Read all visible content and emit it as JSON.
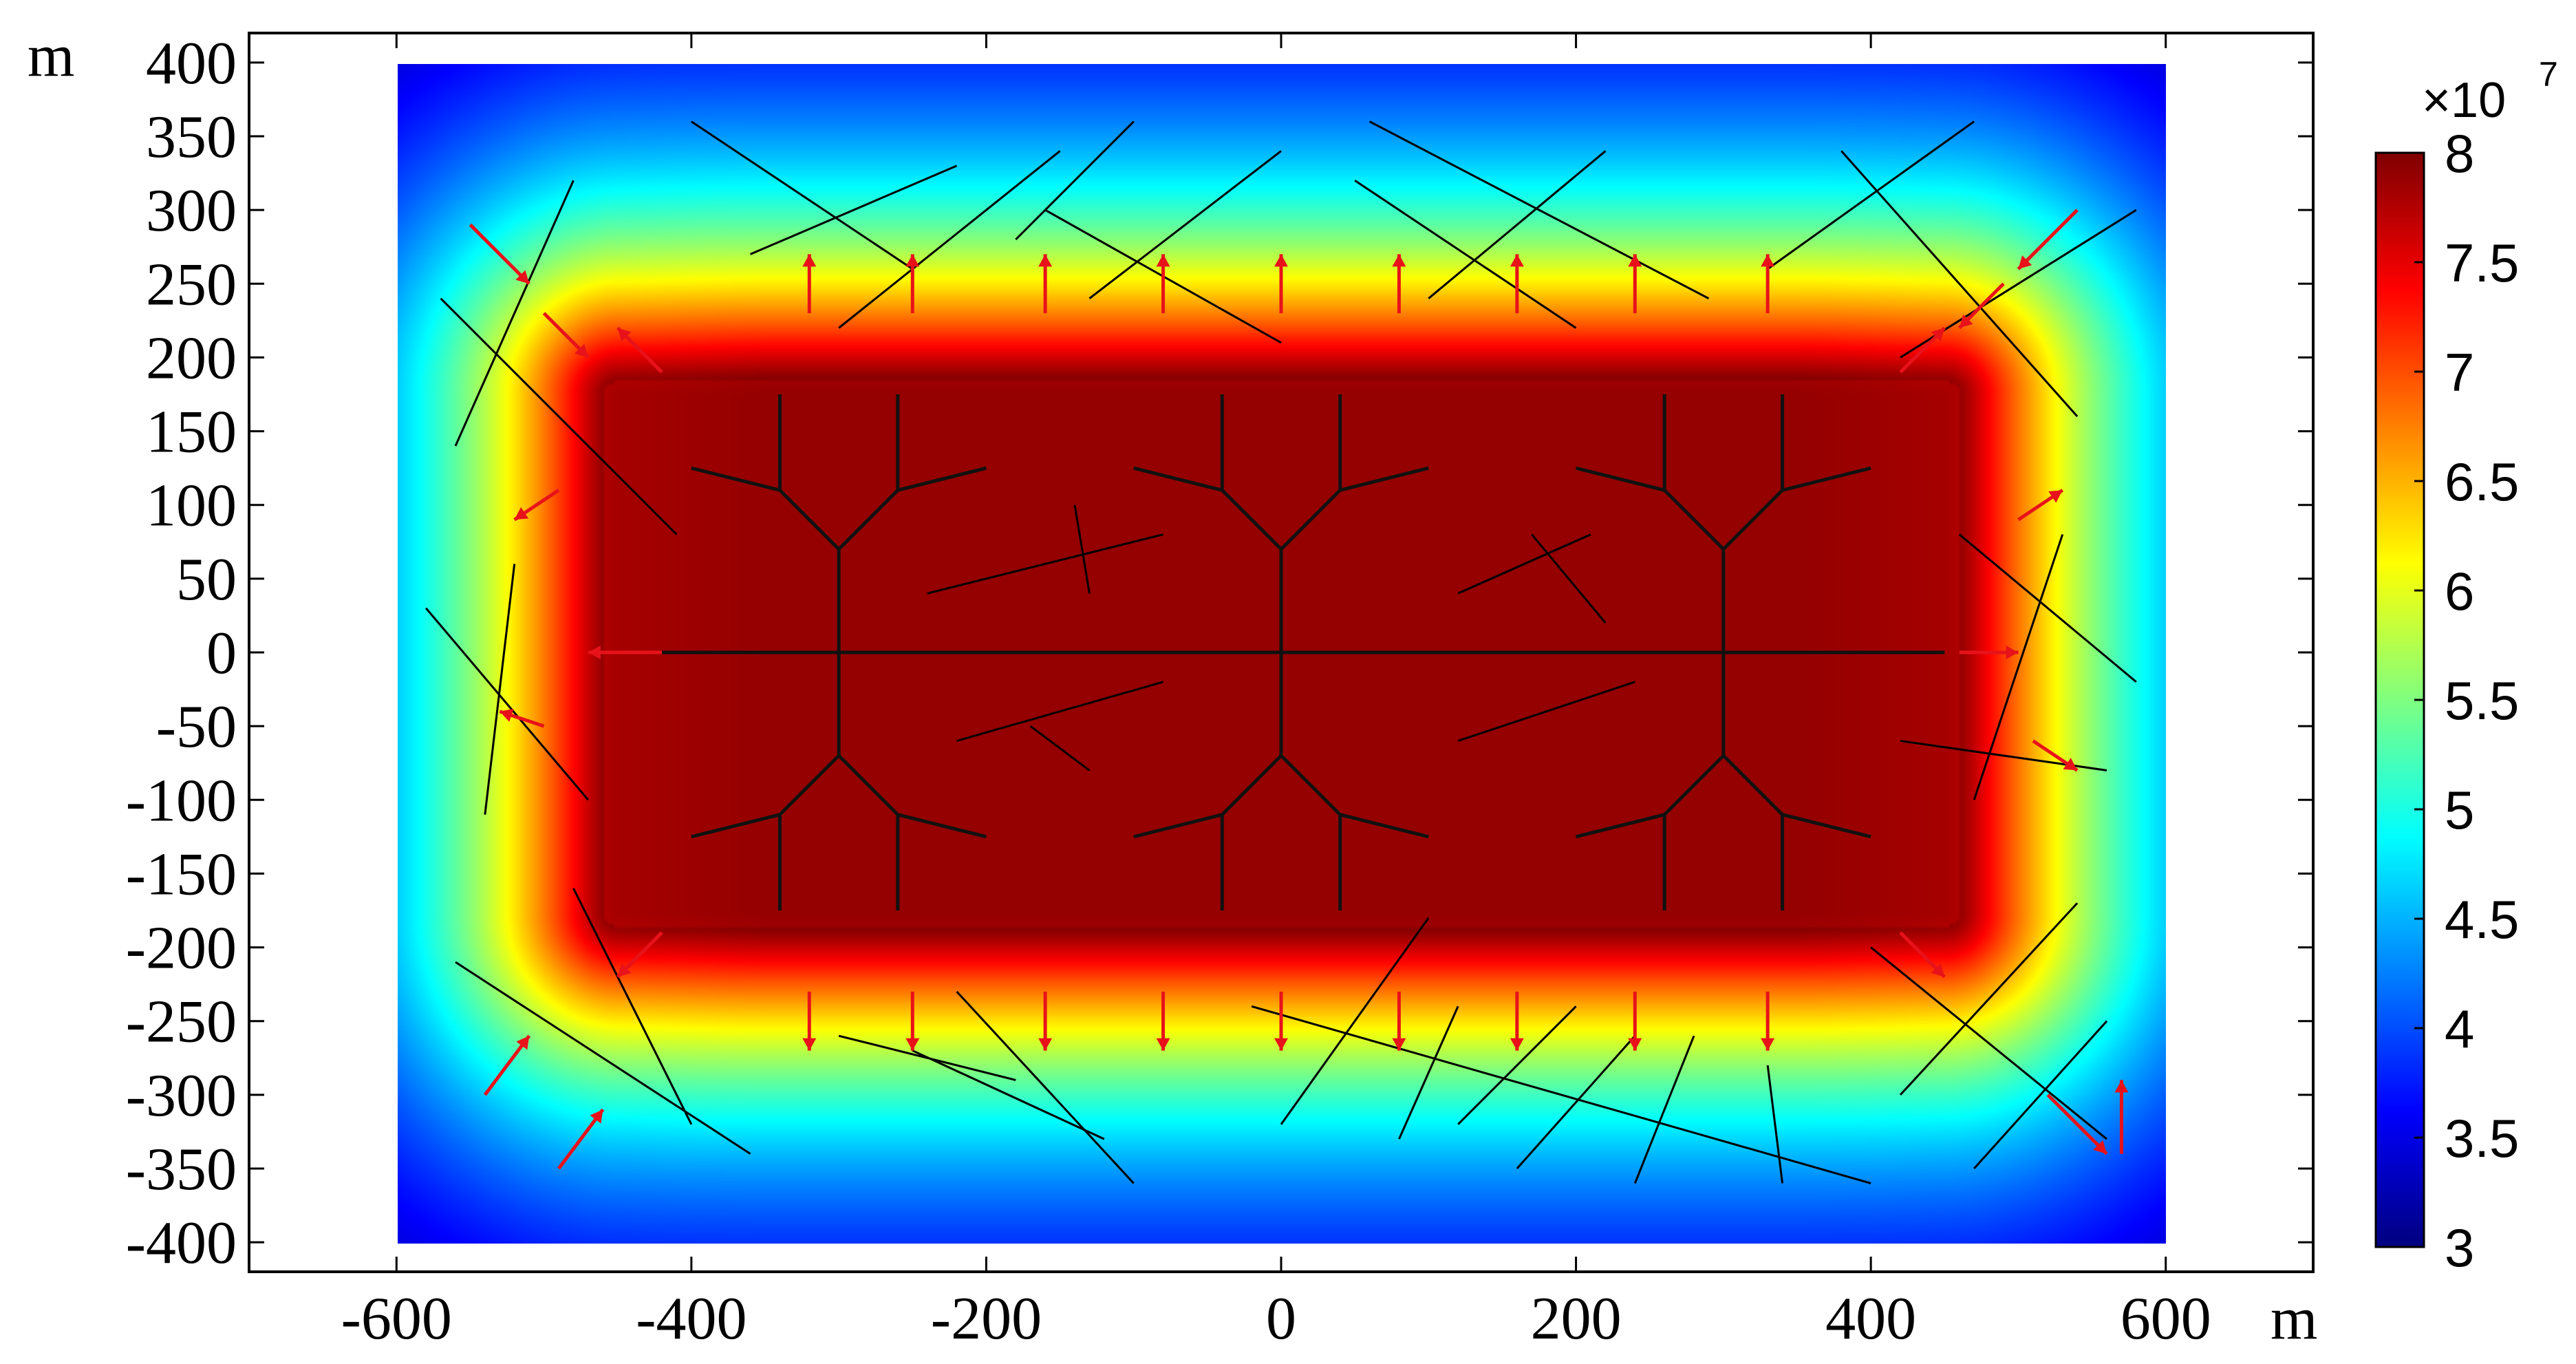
{
  "chart_data": {
    "type": "heatmap",
    "description_free": true,
    "x_unit": "m",
    "y_unit": "m",
    "xlim": [
      -700,
      700
    ],
    "ylim": [
      -420,
      420
    ],
    "domain_x": [
      -600,
      600
    ],
    "domain_y": [
      -400,
      400
    ],
    "x_ticks": [
      -600,
      -400,
      -200,
      0,
      200,
      400,
      600
    ],
    "x_tick_labels": [
      "-600",
      "-400",
      "-200",
      "0",
      "200",
      "400",
      "600"
    ],
    "y_ticks": [
      400,
      350,
      300,
      250,
      200,
      150,
      100,
      50,
      0,
      -50,
      -100,
      -150,
      -200,
      -250,
      -300,
      -350,
      -400
    ],
    "y_tick_labels": [
      "400",
      "350",
      "300",
      "250",
      "200",
      "150",
      "100",
      "50",
      "0",
      "-50",
      "-100",
      "-150",
      "-200",
      "-250",
      "-300",
      "-350",
      "-400"
    ],
    "colorbar": {
      "multiplier_base": "×10",
      "multiplier_exp": "7",
      "min": 3,
      "max": 8,
      "ticks": [
        8,
        7.5,
        7,
        6.5,
        6,
        5.5,
        5,
        4.5,
        4,
        3.5,
        3
      ],
      "tick_labels": [
        "8",
        "7.5",
        "7",
        "6.5",
        "6",
        "5.5",
        "5",
        "4.5",
        "4",
        "3.5",
        "3"
      ],
      "colormap": "jet"
    },
    "field": {
      "core_value": 8.0,
      "far_value": 3.2,
      "core_region": {
        "x_range": [
          -460,
          460
        ],
        "y_range": [
          -190,
          190
        ]
      },
      "decay_length_m": 220
    },
    "hydraulic_fracture_main": {
      "from": [
        -450,
        0
      ],
      "to": [
        450,
        0
      ]
    },
    "well_centers_x": [
      -300,
      0,
      300
    ],
    "natural_fractures": [
      [
        -360,
        270,
        -220,
        330
      ],
      [
        -300,
        220,
        -150,
        340
      ],
      [
        -400,
        360,
        -250,
        260
      ],
      [
        -560,
        140,
        -480,
        320
      ],
      [
        -570,
        240,
        -410,
        80
      ],
      [
        -520,
        60,
        -540,
        -110
      ],
      [
        -580,
        30,
        -470,
        -100
      ],
      [
        -480,
        -160,
        -400,
        -320
      ],
      [
        -560,
        -210,
        -360,
        -340
      ],
      [
        -220,
        -230,
        -100,
        -360
      ],
      [
        -250,
        -270,
        -120,
        -330
      ],
      [
        -300,
        -260,
        -180,
        -290
      ],
      [
        -180,
        280,
        -100,
        360
      ],
      [
        -160,
        300,
        0,
        210
      ],
      [
        -130,
        240,
        0,
        340
      ],
      [
        60,
        360,
        290,
        240
      ],
      [
        50,
        320,
        200,
        220
      ],
      [
        100,
        240,
        220,
        340
      ],
      [
        330,
        260,
        470,
        360
      ],
      [
        380,
        340,
        540,
        160
      ],
      [
        420,
        200,
        580,
        300
      ],
      [
        470,
        -100,
        530,
        80
      ],
      [
        460,
        80,
        580,
        -20
      ],
      [
        420,
        -60,
        560,
        -80
      ],
      [
        420,
        -300,
        540,
        -170
      ],
      [
        470,
        -350,
        560,
        -250
      ],
      [
        400,
        -200,
        560,
        -330
      ],
      [
        -20,
        -240,
        400,
        -360
      ],
      [
        0,
        -320,
        100,
        -180
      ],
      [
        80,
        -330,
        120,
        -240
      ],
      [
        120,
        -320,
        200,
        -240
      ],
      [
        160,
        -350,
        240,
        -260
      ],
      [
        240,
        -360,
        280,
        -260
      ],
      [
        340,
        -360,
        330,
        -280
      ],
      [
        -240,
        40,
        -80,
        80
      ],
      [
        -140,
        100,
        -130,
        40
      ],
      [
        -220,
        -60,
        -80,
        -20
      ],
      [
        -170,
        -50,
        -130,
        -80
      ],
      [
        120,
        -60,
        240,
        -20
      ],
      [
        120,
        40,
        210,
        80
      ],
      [
        170,
        80,
        220,
        20
      ]
    ],
    "flow_arrows_note_free": true,
    "flow_arrows": [
      [
        -420,
        0,
        -50,
        0
      ],
      [
        460,
        0,
        40,
        0
      ],
      [
        -320,
        230,
        0,
        40
      ],
      [
        -250,
        230,
        0,
        40
      ],
      [
        -160,
        230,
        0,
        40
      ],
      [
        -80,
        230,
        0,
        40
      ],
      [
        0,
        230,
        0,
        40
      ],
      [
        80,
        230,
        0,
        40
      ],
      [
        160,
        230,
        0,
        40
      ],
      [
        240,
        230,
        0,
        40
      ],
      [
        330,
        230,
        0,
        40
      ],
      [
        -320,
        -230,
        0,
        -40
      ],
      [
        -250,
        -230,
        0,
        -40
      ],
      [
        -160,
        -230,
        0,
        -40
      ],
      [
        -80,
        -230,
        0,
        -40
      ],
      [
        0,
        -230,
        0,
        -40
      ],
      [
        80,
        -230,
        0,
        -40
      ],
      [
        160,
        -230,
        0,
        -40
      ],
      [
        240,
        -230,
        0,
        -40
      ],
      [
        330,
        -230,
        0,
        -40
      ],
      [
        -420,
        190,
        -30,
        30
      ],
      [
        420,
        190,
        30,
        30
      ],
      [
        -420,
        -190,
        -30,
        -30
      ],
      [
        420,
        -190,
        30,
        -30
      ],
      [
        -550,
        290,
        40,
        -40
      ],
      [
        -500,
        230,
        30,
        -30
      ],
      [
        540,
        300,
        -40,
        -40
      ],
      [
        490,
        250,
        -30,
        -30
      ],
      [
        -540,
        -300,
        30,
        40
      ],
      [
        -490,
        -350,
        30,
        40
      ],
      [
        520,
        -300,
        40,
        -40
      ],
      [
        570,
        -340,
        0,
        50
      ],
      [
        -490,
        110,
        -30,
        -20
      ],
      [
        -500,
        -50,
        -30,
        10
      ],
      [
        500,
        90,
        30,
        20
      ],
      [
        510,
        -60,
        30,
        -20
      ]
    ]
  }
}
